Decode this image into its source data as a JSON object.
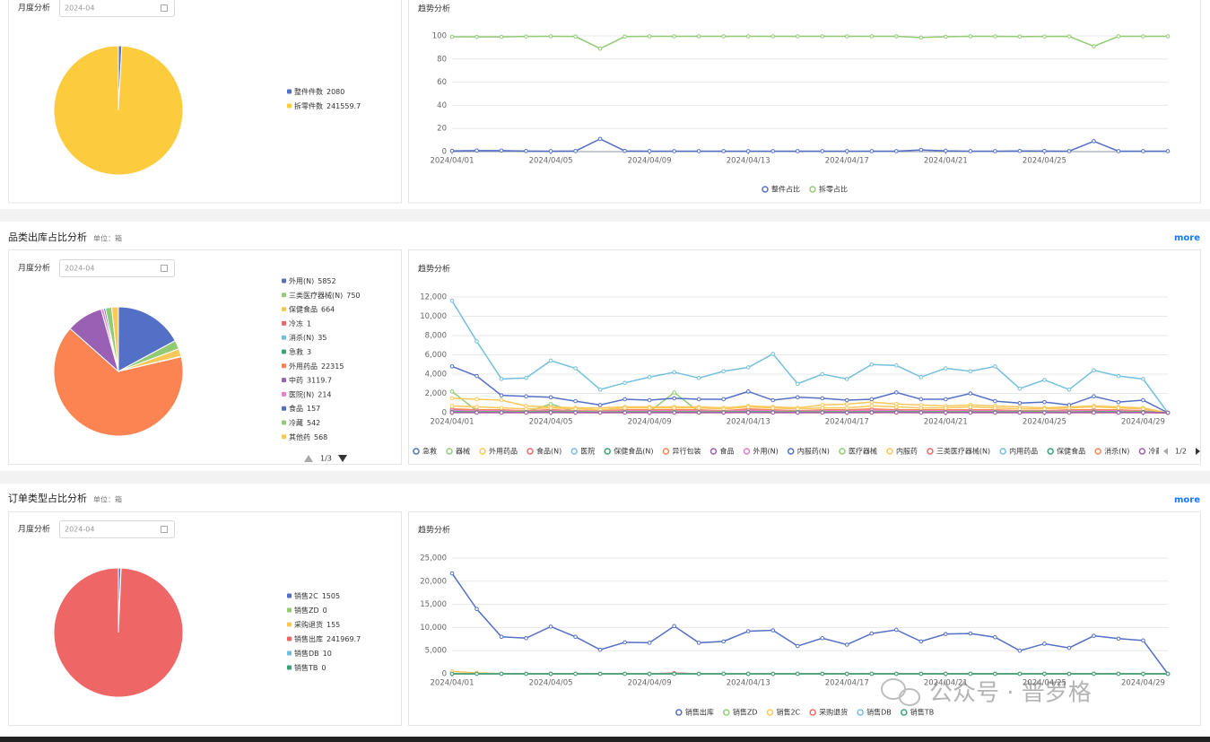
{
  "chart_data": [
    {
      "type": "pie",
      "title": "月度分析",
      "categories": [
        "整件件数",
        "拆零件数"
      ],
      "values": [
        2080,
        241559.7
      ],
      "colors": [
        "#5470c6",
        "#fccb3e"
      ]
    },
    {
      "type": "line",
      "title": "趋势分析",
      "categories": [
        "2024/04/01",
        null,
        null,
        null,
        "2024/04/05",
        null,
        null,
        null,
        "2024/04/09",
        null,
        null,
        null,
        "2024/04/13",
        null,
        null,
        null,
        "2024/04/17",
        null,
        null,
        null,
        "2024/04/21",
        null,
        null,
        null,
        "2024/04/25",
        null,
        null,
        null,
        null,
        null
      ],
      "series": [
        {
          "name": "整件占比",
          "color": "#5470c6",
          "values": [
            0.6,
            0.9,
            0.9,
            0.5,
            0.4,
            0.5,
            11,
            0.6,
            0.4,
            0.4,
            0.4,
            0.4,
            0.4,
            0.4,
            0.4,
            0.4,
            0.4,
            0.4,
            0.4,
            1.5,
            0.7,
            0.4,
            0.4,
            0.6,
            0.5,
            0.4,
            9,
            0.4,
            0.4,
            0.4
          ]
        },
        {
          "name": "拆零占比",
          "color": "#91cc75",
          "values": [
            99.2,
            99.1,
            99.1,
            99.5,
            99.6,
            99.5,
            89,
            99.4,
            99.6,
            99.6,
            99.6,
            99.6,
            99.6,
            99.6,
            99.6,
            99.6,
            99.6,
            99.6,
            99.6,
            98.5,
            99.3,
            99.6,
            99.6,
            99.4,
            99.5,
            99.6,
            91,
            99.6,
            99.6,
            99.6
          ]
        }
      ],
      "ylim": [
        0,
        100
      ],
      "yticks": [
        0,
        20,
        40,
        60,
        80,
        100
      ],
      "grid": true
    },
    {
      "type": "pie",
      "title": "月度分析",
      "legend_page": "1/3",
      "categories": [
        "外用(N)",
        "三类医疗器械(N)",
        "保健食品",
        "冷冻",
        "消杀(N)",
        "急救",
        "外用药品",
        "中药",
        "医院(N)",
        "食品",
        "冷藏",
        "其他药"
      ],
      "values": [
        5852,
        750,
        664,
        1,
        35,
        3,
        22315,
        3119.7,
        214,
        157,
        542,
        568
      ],
      "colors": [
        "#5470c6",
        "#91cc75",
        "#fac858",
        "#ee6666",
        "#73c0de",
        "#3ba272",
        "#fc8452",
        "#9a60b4",
        "#ea7ccc",
        "#5470c6",
        "#91cc75",
        "#fac858"
      ]
    },
    {
      "type": "line",
      "title": "趋势分析",
      "legend_page": "1/2",
      "categories": [
        "2024/04/01",
        null,
        null,
        null,
        "2024/04/05",
        null,
        null,
        null,
        "2024/04/09",
        null,
        null,
        null,
        "2024/04/13",
        null,
        null,
        null,
        "2024/04/17",
        null,
        null,
        null,
        "2024/04/21",
        null,
        null,
        null,
        "2024/04/25",
        null,
        null,
        null,
        "2024/04/29",
        null
      ],
      "series": [
        {
          "name": "急救",
          "color": "#5470c6",
          "values": [
            300,
            200,
            200,
            200,
            300,
            200,
            100,
            200,
            200,
            200,
            200,
            200,
            300,
            200,
            200,
            200,
            200,
            200,
            300,
            200,
            200,
            300,
            200,
            200,
            200,
            100,
            300,
            200,
            200,
            0
          ]
        },
        {
          "name": "器械",
          "color": "#91cc75",
          "values": [
            2200,
            200,
            100,
            100,
            900,
            100,
            100,
            100,
            100,
            2100,
            100,
            100,
            100,
            100,
            100,
            100,
            100,
            100,
            100,
            100,
            100,
            100,
            100,
            100,
            100,
            100,
            100,
            100,
            100,
            0
          ]
        },
        {
          "name": "外用药品",
          "color": "#fac858",
          "values": [
            1500,
            1400,
            1300,
            700,
            600,
            500,
            500,
            600,
            600,
            600,
            600,
            500,
            700,
            600,
            500,
            800,
            900,
            1100,
            900,
            800,
            700,
            800,
            700,
            600,
            500,
            600,
            700,
            600,
            500,
            0
          ]
        },
        {
          "name": "食品(N)",
          "color": "#ee6666",
          "values": [
            150,
            100,
            100,
            100,
            150,
            100,
            100,
            100,
            100,
            100,
            100,
            100,
            150,
            100,
            100,
            100,
            100,
            100,
            150,
            100,
            100,
            100,
            100,
            100,
            100,
            100,
            150,
            100,
            100,
            0
          ]
        },
        {
          "name": "医院",
          "color": "#73c0de",
          "values": [
            60,
            50,
            50,
            50,
            60,
            50,
            40,
            50,
            50,
            50,
            50,
            50,
            60,
            50,
            50,
            50,
            50,
            50,
            60,
            50,
            50,
            50,
            50,
            50,
            50,
            40,
            60,
            50,
            50,
            0
          ]
        },
        {
          "name": "保健食品(N)",
          "color": "#3ba272",
          "values": [
            100,
            80,
            80,
            80,
            100,
            80,
            60,
            80,
            80,
            90,
            80,
            80,
            100,
            80,
            80,
            80,
            80,
            80,
            100,
            80,
            80,
            90,
            80,
            80,
            80,
            60,
            100,
            80,
            80,
            0
          ]
        },
        {
          "name": "异行包装",
          "color": "#fc8452",
          "values": [
            400,
            300,
            300,
            200,
            300,
            200,
            200,
            300,
            300,
            300,
            300,
            200,
            400,
            300,
            200,
            300,
            300,
            400,
            300,
            300,
            300,
            300,
            300,
            200,
            200,
            300,
            300,
            300,
            200,
            0
          ]
        },
        {
          "name": "食品",
          "color": "#9a60b4",
          "values": [
            50,
            40,
            40,
            40,
            50,
            40,
            30,
            40,
            40,
            40,
            40,
            40,
            50,
            40,
            40,
            40,
            40,
            40,
            50,
            40,
            40,
            40,
            40,
            40,
            40,
            30,
            50,
            40,
            40,
            0
          ]
        },
        {
          "name": "外用(N)",
          "color": "#ea7ccc",
          "values": [
            250,
            200,
            200,
            150,
            200,
            150,
            150,
            200,
            200,
            200,
            200,
            150,
            250,
            200,
            150,
            200,
            200,
            250,
            200,
            200,
            200,
            200,
            200,
            150,
            150,
            200,
            200,
            200,
            150,
            0
          ]
        },
        {
          "name": "内服药(N)",
          "color": "#5470c6",
          "values": [
            4800,
            3800,
            1800,
            1700,
            1600,
            1200,
            800,
            1400,
            1300,
            1500,
            1400,
            1400,
            2200,
            1300,
            1600,
            1500,
            1300,
            1400,
            2100,
            1400,
            1400,
            2000,
            1200,
            1000,
            1100,
            800,
            1700,
            1100,
            1300,
            0
          ]
        },
        {
          "name": "医疗器械",
          "color": "#91cc75",
          "values": [
            120,
            100,
            100,
            100,
            120,
            100,
            80,
            100,
            100,
            100,
            100,
            100,
            120,
            100,
            100,
            100,
            100,
            100,
            120,
            100,
            100,
            100,
            100,
            100,
            100,
            80,
            120,
            100,
            100,
            0
          ]
        },
        {
          "name": "内服药",
          "color": "#fac858",
          "values": [
            700,
            600,
            500,
            400,
            500,
            400,
            300,
            500,
            500,
            500,
            500,
            400,
            600,
            500,
            400,
            500,
            500,
            700,
            600,
            500,
            500,
            600,
            500,
            400,
            400,
            500,
            600,
            500,
            400,
            0
          ]
        },
        {
          "name": "三类医疗器械(N)",
          "color": "#ee6666",
          "values": [
            40,
            30,
            30,
            30,
            40,
            30,
            20,
            30,
            30,
            30,
            30,
            30,
            40,
            30,
            30,
            30,
            30,
            30,
            40,
            30,
            30,
            30,
            30,
            30,
            30,
            20,
            40,
            30,
            30,
            0
          ]
        },
        {
          "name": "内用药品",
          "color": "#73c0de",
          "values": [
            11600,
            7400,
            3500,
            3600,
            5400,
            4600,
            2400,
            3100,
            3700,
            4200,
            3600,
            4300,
            4700,
            6100,
            3000,
            4000,
            3500,
            5000,
            4900,
            3700,
            4600,
            4300,
            4800,
            2500,
            3400,
            2400,
            4400,
            3800,
            3500,
            0
          ]
        },
        {
          "name": "保健食品",
          "color": "#3ba272",
          "values": [
            80,
            60,
            60,
            60,
            80,
            60,
            40,
            60,
            60,
            60,
            60,
            60,
            80,
            60,
            60,
            60,
            60,
            60,
            80,
            60,
            60,
            60,
            60,
            60,
            60,
            40,
            80,
            60,
            60,
            0
          ]
        },
        {
          "name": "消杀(N)",
          "color": "#fc8452",
          "values": [
            10,
            0,
            0,
            0,
            10,
            0,
            0,
            0,
            0,
            0,
            0,
            0,
            10,
            0,
            0,
            0,
            0,
            0,
            10,
            0,
            0,
            0,
            0,
            0,
            0,
            0,
            5,
            0,
            0,
            0
          ]
        },
        {
          "name": "冷藏",
          "color": "#9a60b4",
          "values": [
            30,
            20,
            20,
            20,
            30,
            20,
            10,
            20,
            20,
            20,
            20,
            20,
            30,
            20,
            20,
            20,
            20,
            20,
            30,
            20,
            20,
            20,
            20,
            20,
            20,
            10,
            30,
            20,
            20,
            0
          ]
        }
      ],
      "ylim": [
        0,
        12000
      ],
      "yticks": [
        0,
        {
          "value": 2000,
          "label": "2,000"
        },
        {
          "value": 4000,
          "label": "4,000"
        },
        {
          "value": 6000,
          "label": "6,000"
        },
        {
          "value": 8000,
          "label": "8,000"
        },
        {
          "value": 10000,
          "label": "10,000"
        },
        {
          "value": 12000,
          "label": "12,000"
        }
      ],
      "grid": true
    },
    {
      "type": "pie",
      "title": "月度分析",
      "categories": [
        "销售2C",
        "销售ZD",
        "采购退货",
        "销售出库",
        "销售DB",
        "销售TB"
      ],
      "values": [
        1505,
        0,
        155,
        241969.7,
        10,
        0
      ],
      "colors": [
        "#5470c6",
        "#91cc75",
        "#fac858",
        "#ee6666",
        "#73c0de",
        "#3ba272"
      ]
    },
    {
      "type": "line",
      "title": "趋势分析",
      "categories": [
        "2024/04/01",
        null,
        null,
        null,
        "2024/04/05",
        null,
        null,
        null,
        "2024/04/09",
        null,
        null,
        null,
        "2024/04/13",
        null,
        null,
        null,
        "2024/04/17",
        null,
        null,
        null,
        "2024/04/21",
        null,
        null,
        null,
        "2024/04/25",
        null,
        null,
        null,
        "2024/04/29",
        null
      ],
      "series": [
        {
          "name": "销售出库",
          "color": "#5470c6",
          "values": [
            21700,
            14000,
            8000,
            7700,
            10200,
            8000,
            5200,
            6800,
            6700,
            10300,
            6700,
            7000,
            9200,
            9400,
            6000,
            7700,
            6300,
            8700,
            9500,
            7000,
            8600,
            8700,
            7900,
            5000,
            6500,
            5600,
            8200,
            7600,
            7200,
            0
          ]
        },
        {
          "name": "销售ZD",
          "color": "#91cc75",
          "values": [
            0,
            0,
            0,
            0,
            0,
            0,
            0,
            0,
            0,
            0,
            0,
            0,
            0,
            0,
            0,
            0,
            0,
            0,
            0,
            0,
            0,
            0,
            0,
            0,
            0,
            0,
            0,
            0,
            0,
            0
          ]
        },
        {
          "name": "销售2C",
          "color": "#fac858",
          "values": [
            500,
            200,
            50,
            50,
            50,
            50,
            50,
            50,
            50,
            100,
            50,
            50,
            50,
            50,
            50,
            50,
            50,
            50,
            50,
            50,
            50,
            50,
            50,
            50,
            50,
            50,
            50,
            50,
            50,
            0
          ]
        },
        {
          "name": "采购退货",
          "color": "#ee6666",
          "values": [
            0,
            0,
            0,
            0,
            0,
            0,
            0,
            0,
            0,
            155,
            0,
            0,
            0,
            0,
            0,
            0,
            0,
            0,
            0,
            0,
            0,
            0,
            0,
            0,
            0,
            0,
            0,
            0,
            0,
            0
          ]
        },
        {
          "name": "销售DB",
          "color": "#73c0de",
          "values": [
            0,
            0,
            0,
            0,
            0,
            0,
            0,
            0,
            0,
            0,
            0,
            0,
            0,
            0,
            0,
            0,
            10,
            0,
            0,
            0,
            0,
            0,
            0,
            0,
            0,
            0,
            0,
            0,
            0,
            0
          ]
        },
        {
          "name": "销售TB",
          "color": "#3ba272",
          "values": [
            0,
            0,
            0,
            0,
            0,
            0,
            0,
            0,
            0,
            0,
            0,
            0,
            0,
            0,
            0,
            0,
            0,
            0,
            0,
            0,
            0,
            0,
            0,
            0,
            0,
            0,
            0,
            0,
            0,
            0
          ]
        }
      ],
      "ylim": [
        0,
        25000
      ],
      "yticks": [
        0,
        {
          "value": 5000,
          "label": "5,000"
        },
        {
          "value": 10000,
          "label": "10,000"
        },
        {
          "value": 15000,
          "label": "15,000"
        },
        {
          "value": 20000,
          "label": "20,000"
        },
        {
          "value": 25000,
          "label": "25,000"
        }
      ],
      "grid": true
    }
  ],
  "ui": {
    "date_filters": [
      "2024-04",
      "2024-04",
      "2024-04"
    ],
    "sections": [
      {
        "title": "品类出库占比分析",
        "unit": "单位：箱",
        "more": "more"
      },
      {
        "title": "订单类型占比分析",
        "unit": "单位：箱",
        "more": "more"
      }
    ],
    "watermark": "公众号 · 普罗格"
  }
}
